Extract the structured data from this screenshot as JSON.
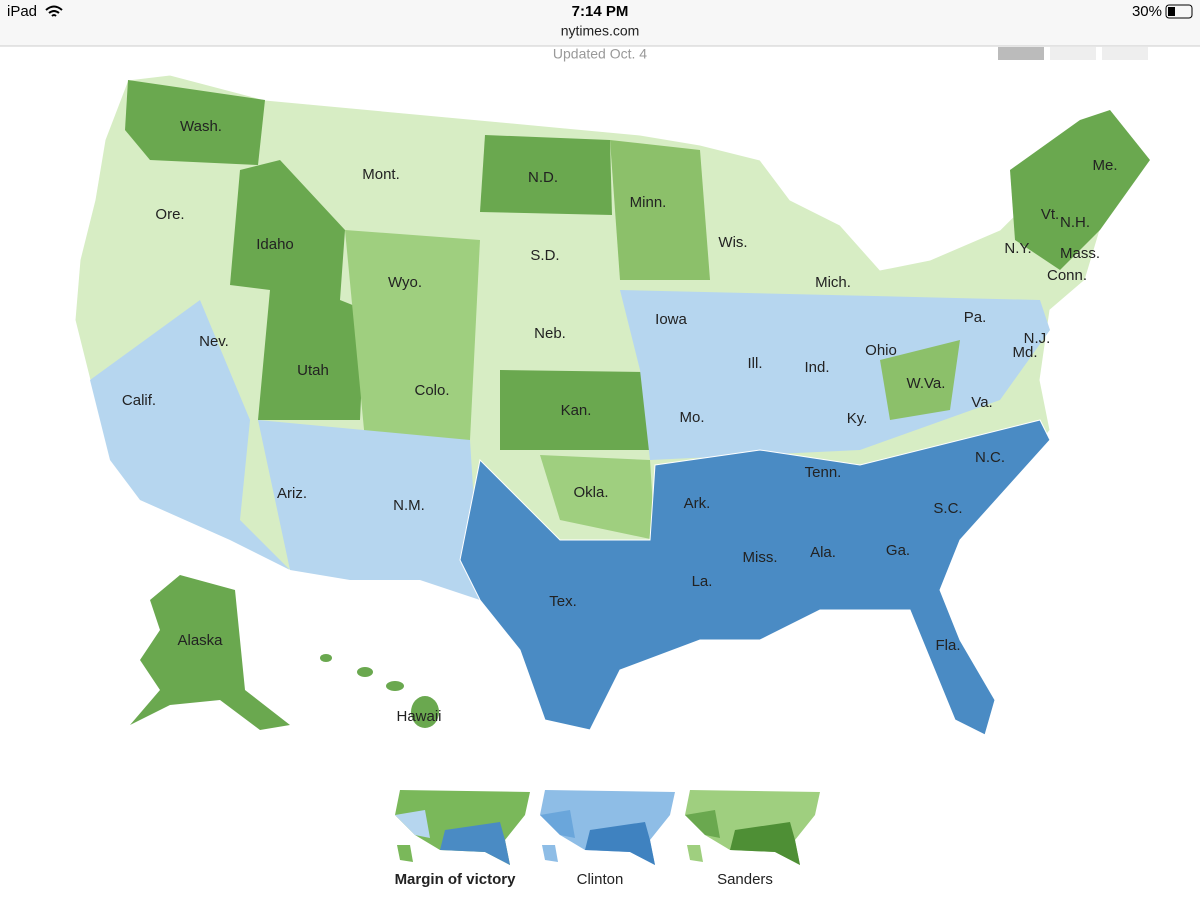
{
  "status_bar": {
    "device": "iPad",
    "time": "7:14 PM",
    "battery": "30%"
  },
  "address_bar": {
    "url": "nytimes.com"
  },
  "header": {
    "updated": "Updated Oct. 4"
  },
  "map": {
    "state_labels": [
      "Wash.",
      "Mont.",
      "N.D.",
      "Minn.",
      "Ore.",
      "Idaho",
      "Wyo.",
      "S.D.",
      "Wis.",
      "Me.",
      "Vt.",
      "N.H.",
      "N.Y.",
      "Mass.",
      "Conn.",
      "Mich.",
      "Iowa",
      "Neb.",
      "Pa.",
      "Nev.",
      "Utah",
      "Ohio",
      "Md.",
      "N.J.",
      "Ill.",
      "Ind.",
      "Colo.",
      "W.Va.",
      "Calif.",
      "Kan.",
      "Va.",
      "Mo.",
      "Ky.",
      "Tenn.",
      "N.C.",
      "Ark.",
      "Okla.",
      "Ariz.",
      "N.M.",
      "S.C.",
      "Miss.",
      "Ala.",
      "Ga.",
      "La.",
      "Tex.",
      "Fla.",
      "Alaska",
      "Hawaii"
    ]
  },
  "thumbnails": [
    {
      "label": "Margin of victory"
    },
    {
      "label": "Clinton"
    },
    {
      "label": "Sanders"
    }
  ]
}
